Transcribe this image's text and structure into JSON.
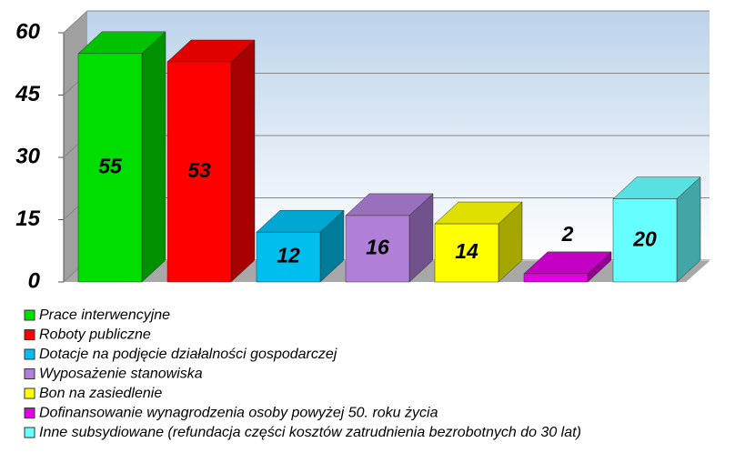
{
  "chart_data": {
    "type": "bar3d",
    "categories": [
      "Prace interwencyjne",
      "Roboty publiczne",
      "Dotacje na podjęcie działalności gospodarczej",
      "Wyposażenie stanowiska",
      "Bon na zasiedlenie",
      "Dofinansowanie wynagrodzenia osoby powyżej 50. roku życia",
      "Inne subsydiowane (refundacja części kosztów zatrudnienia bezrobotnych do 30 lat)"
    ],
    "values": [
      55,
      53,
      12,
      16,
      14,
      2,
      20
    ],
    "colors": [
      "#00dd00",
      "#ff0000",
      "#00bfef",
      "#b07fd8",
      "#ffff00",
      "#e000e0",
      "#66ffff"
    ],
    "ylim": [
      0,
      60
    ],
    "yticks": [
      0,
      15,
      30,
      45,
      60
    ],
    "grid": true
  }
}
